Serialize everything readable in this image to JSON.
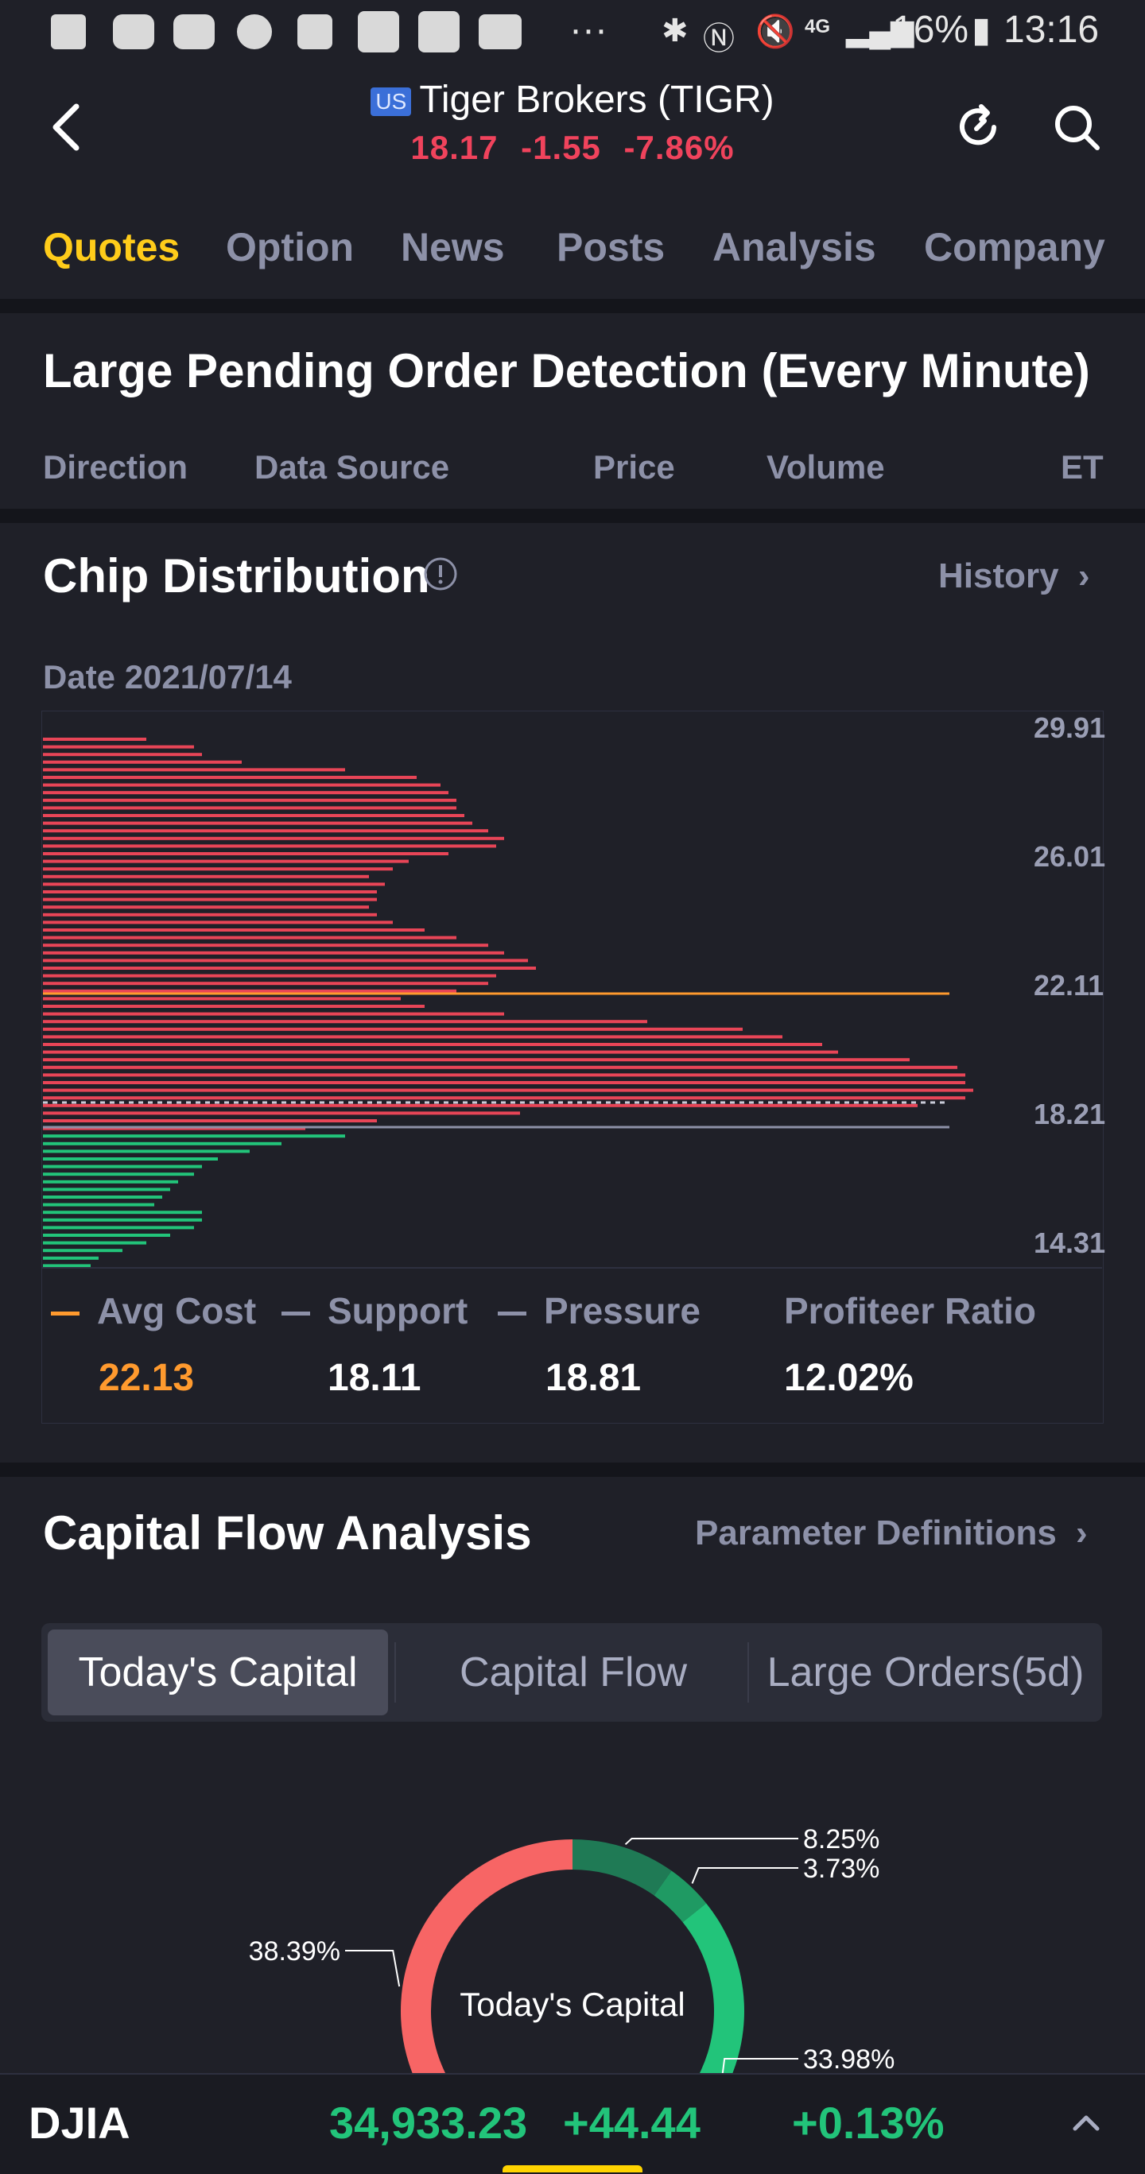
{
  "status_bar": {
    "dots": "···",
    "network": "4G",
    "battery": "16%",
    "time": "13:16"
  },
  "header": {
    "market_badge": "US",
    "title": "Tiger Brokers (TIGR)",
    "price": "18.17",
    "change": "-1.55",
    "change_pct": "-7.86%"
  },
  "tabs": [
    "Quotes",
    "Option",
    "News",
    "Posts",
    "Analysis",
    "Company"
  ],
  "large_orders": {
    "title": "Large Pending Order Detection (Every Minute)",
    "columns": [
      "Direction",
      "Data Source",
      "Price",
      "Volume",
      "ET"
    ]
  },
  "chip_distribution": {
    "title": "Chip Distribution",
    "history_label": "History",
    "date_label": "Date 2021/07/14",
    "price_ticks": [
      "29.91",
      "26.01",
      "22.11",
      "18.21",
      "14.31"
    ],
    "colors": {
      "loss": "#e84557",
      "profit": "#22c47a",
      "avg": "#ff9a2e",
      "support": "#8d91a8"
    },
    "legend": {
      "avg_cost_label": "Avg Cost",
      "avg_cost_value": "22.13",
      "support_label": "Support",
      "support_value": "18.11",
      "pressure_label": "Pressure",
      "pressure_value": "18.81",
      "profiteer_label": "Profiteer Ratio",
      "profiteer_value": "12.02%"
    }
  },
  "capital_flow": {
    "title": "Capital Flow Analysis",
    "param_label": "Parameter Definitions",
    "seg_tabs": [
      "Today's Capital",
      "Capital Flow",
      "Large Orders(5d)"
    ],
    "donut_center": "Today's Capital"
  },
  "chart_data": {
    "type": "pie",
    "title": "Today's Capital",
    "labels": [
      "8.25%",
      "3.73%",
      "33.98%",
      "38.39%"
    ],
    "values": [
      8.25,
      3.73,
      33.98,
      38.39
    ],
    "colors": [
      "#1f7a55",
      "#1f9a63",
      "#22c47a",
      "#f76565"
    ]
  },
  "ticker": {
    "name": "DJIA",
    "value": "34,933.23",
    "change": "+44.44",
    "change_pct": "+0.13%"
  }
}
